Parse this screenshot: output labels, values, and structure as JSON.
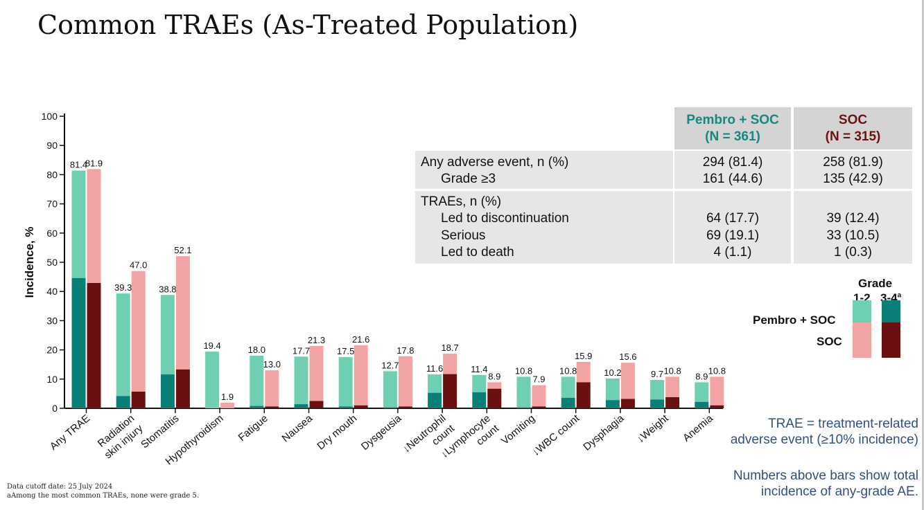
{
  "title": "Common TRAEs (As-Treated Population)",
  "chart_data": {
    "type": "bar",
    "ylabel": "Incidence, %",
    "ylim": [
      0,
      100
    ],
    "yticks": [
      0,
      10,
      20,
      30,
      40,
      50,
      60,
      70,
      80,
      90,
      100
    ],
    "categories": [
      "Any TRAE",
      "Radiation skin injury",
      "Stomatitis",
      "Hypothyroidism",
      "Fatigue",
      "Nausea",
      "Dry mouth",
      "Dysgeusia",
      "↓Neutrophil count",
      "↓Lymphocyte count",
      "Vomiting",
      "↓WBC count",
      "Dysphagia",
      "↓Weight",
      "Anemia"
    ],
    "category_lines": [
      [
        "Any TRAE"
      ],
      [
        "Radiation",
        "skin injury"
      ],
      [
        "Stomatitis"
      ],
      [
        "Hypothyroidism"
      ],
      [
        "Fatigue"
      ],
      [
        "Nausea"
      ],
      [
        "Dry mouth"
      ],
      [
        "Dysgeusia"
      ],
      [
        "↓Neutrophil",
        "count"
      ],
      [
        "↓Lymphocyte",
        "count"
      ],
      [
        "Vomiting"
      ],
      [
        "↓WBC count"
      ],
      [
        "Dysphagia"
      ],
      [
        "↓Weight"
      ],
      [
        "Anemia"
      ]
    ],
    "series": [
      {
        "name": "Pembro + SOC",
        "total": [
          81.4,
          39.3,
          38.8,
          19.4,
          18.0,
          17.7,
          17.5,
          12.7,
          11.6,
          11.4,
          10.8,
          10.8,
          10.2,
          9.7,
          8.9
        ],
        "grade34": [
          44.6,
          4.2,
          11.6,
          0.0,
          0.8,
          1.4,
          0.6,
          0.3,
          5.3,
          5.5,
          0.3,
          3.6,
          2.8,
          3.0,
          2.2
        ],
        "color_12": "#6fcfb3",
        "color_34": "#0a7f78"
      },
      {
        "name": "SOC",
        "total": [
          81.9,
          47.0,
          52.1,
          1.9,
          13.0,
          21.3,
          21.6,
          17.8,
          18.7,
          8.9,
          7.9,
          15.9,
          15.6,
          10.8,
          10.8
        ],
        "grade34": [
          42.9,
          5.7,
          13.3,
          0.0,
          0.6,
          2.5,
          1.0,
          0.6,
          11.7,
          6.7,
          0.6,
          8.9,
          3.2,
          3.8,
          1.0
        ],
        "color_12": "#f2a3a3",
        "color_34": "#6a1010"
      }
    ],
    "data_labels": [
      [
        "81.4",
        "39.3",
        "38.8",
        "19.4",
        "18.0",
        "17.7",
        "17.5",
        "12.7",
        "11.6",
        "11.4",
        "10.8",
        "10.8",
        "10.2",
        "9.7",
        "8.9"
      ],
      [
        "81.9",
        "47.0",
        "52.1",
        "1.9",
        "13.0",
        "21.3",
        "21.6",
        "17.8",
        "18.7",
        "8.9",
        "7.9",
        "15.9",
        "15.6",
        "10.8",
        "10.8"
      ]
    ]
  },
  "table": {
    "headers": {
      "pembro": [
        "Pembro + SOC",
        "(N = 361)"
      ],
      "soc": [
        "SOC",
        "(N = 315)"
      ]
    },
    "groups": [
      {
        "rows": [
          {
            "label": "Any adverse event, n (%)",
            "indent": false,
            "pembro": "294 (81.4)",
            "soc": "258 (81.9)"
          },
          {
            "label": "Grade ≥3",
            "indent": true,
            "pembro": "161 (44.6)",
            "soc": "135 (42.9)"
          }
        ]
      },
      {
        "rows": [
          {
            "label": "TRAEs, n (%)",
            "indent": false,
            "pembro": "",
            "soc": ""
          },
          {
            "label": "Led to discontinuation",
            "indent": true,
            "pembro": "64 (17.7)",
            "soc": "39 (12.4)"
          },
          {
            "label": "Serious",
            "indent": true,
            "pembro": "69 (19.1)",
            "soc": "33 (10.5)"
          },
          {
            "label": "Led to death",
            "indent": true,
            "pembro": "4 (1.1)",
            "soc": "1 (0.3)"
          }
        ]
      }
    ]
  },
  "legend": {
    "grade_title": "Grade",
    "col_12": "1-2",
    "col_34": "3-4",
    "col_34_sup": "a",
    "row_pembro": "Pembro + SOC",
    "row_soc": "SOC"
  },
  "notes": {
    "trae_1": "TRAE = treatment-related",
    "trae_2": "adverse event (≥10% incidence)",
    "numbers_1": "Numbers above bars show total",
    "numbers_2": "incidence of any-grade AE."
  },
  "footnotes": {
    "line1": "Data cutoff date: 25 July 2024",
    "line2": "aAmong the most common TRAEs, none were grade 5."
  }
}
